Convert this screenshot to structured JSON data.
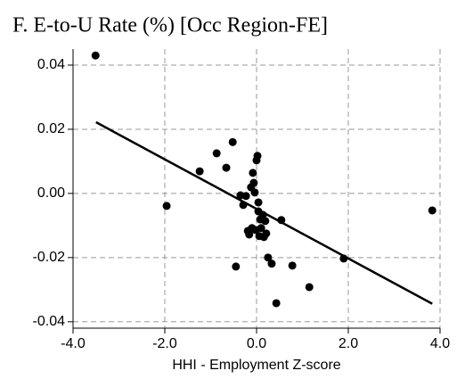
{
  "chart_data": {
    "type": "scatter",
    "title": "F. E-to-U Rate (%) [Occ Region-FE]",
    "x_label": "HHI - Employment Z-score",
    "x": [
      -3.51,
      -1.96,
      -1.24,
      -0.87,
      -0.66,
      -0.52,
      -0.45,
      -0.35,
      -0.29,
      -0.23,
      -0.19,
      -0.16,
      -0.12,
      -0.1,
      -0.08,
      -0.06,
      -0.04,
      -0.02,
      0.0,
      0.02,
      0.04,
      0.04,
      0.06,
      0.08,
      0.1,
      0.14,
      0.16,
      0.19,
      0.21,
      0.25,
      0.33,
      0.43,
      0.54,
      0.78,
      1.15,
      1.9,
      3.83
    ],
    "values": [
      0.043,
      -0.0039,
      0.0069,
      0.0125,
      0.008,
      0.016,
      -0.0228,
      -0.0006,
      -0.0036,
      -0.0008,
      -0.0117,
      -0.0128,
      0.0019,
      -0.0108,
      0.0064,
      0.0033,
      0.0003,
      -0.0114,
      0.0103,
      0.0117,
      -0.0028,
      -0.0056,
      -0.0133,
      -0.0081,
      -0.0108,
      -0.0067,
      -0.0136,
      -0.0086,
      -0.0125,
      -0.02,
      -0.0219,
      -0.0342,
      -0.0083,
      -0.0225,
      -0.0292,
      -0.0203,
      -0.0053
    ],
    "color": "#000000",
    "fit_line": {
      "x": [
        -3.5,
        3.83
      ],
      "values": [
        0.0222,
        -0.0344
      ],
      "color": "#000000"
    },
    "xlim": [
      -4,
      4
    ],
    "xticks": [
      {
        "value": -4,
        "label": "-4.0"
      },
      {
        "value": -2,
        "label": "-2.0"
      },
      {
        "value": 0,
        "label": "0.0"
      },
      {
        "value": 2,
        "label": "2.0"
      },
      {
        "value": 4,
        "label": "4.0"
      }
    ],
    "ylim": [
      -0.042,
      0.045
    ],
    "yticks": [
      -0.04,
      -0.02,
      {
        "value": 0,
        "label": "0.00"
      },
      0.02,
      0.04
    ],
    "grid": true
  }
}
